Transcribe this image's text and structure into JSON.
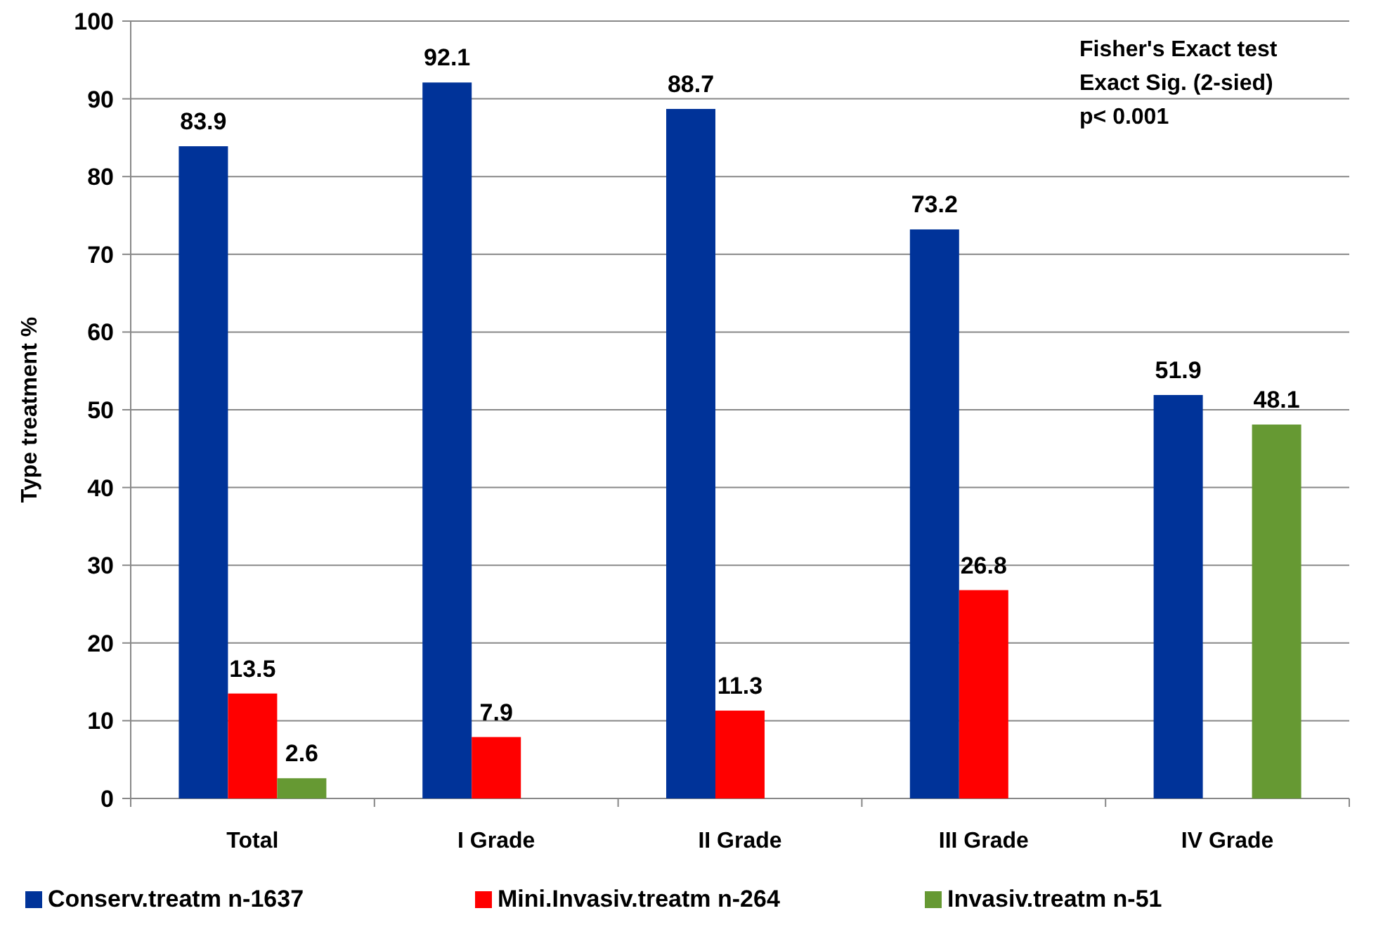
{
  "chart_data": {
    "type": "bar",
    "ylabel": "Type  treatment %",
    "categories": [
      "Total",
      "I Grade",
      "II Grade",
      "III Grade",
      "IV Grade"
    ],
    "series": [
      {
        "name": "Conserv.treatm  n-1637",
        "color": "#003399",
        "values": [
          83.9,
          92.1,
          88.7,
          73.2,
          51.9
        ]
      },
      {
        "name": "Mini.Invasiv.treatm  n-264",
        "color": "#ff0000",
        "values": [
          13.5,
          7.9,
          11.3,
          26.8,
          null
        ]
      },
      {
        "name": "Invasiv.treatm  n-51",
        "color": "#669933",
        "values": [
          2.6,
          null,
          null,
          null,
          48.1
        ]
      }
    ],
    "ylim": [
      0,
      100
    ],
    "yticks": [
      0,
      10,
      20,
      30,
      40,
      50,
      60,
      70,
      80,
      90,
      100
    ],
    "grid": "y",
    "legend": "bottom",
    "data_labels": true,
    "annotations": [
      "Fisher's Exact test",
      "Exact Sig. (2-sied)",
      "p< 0.001"
    ]
  }
}
